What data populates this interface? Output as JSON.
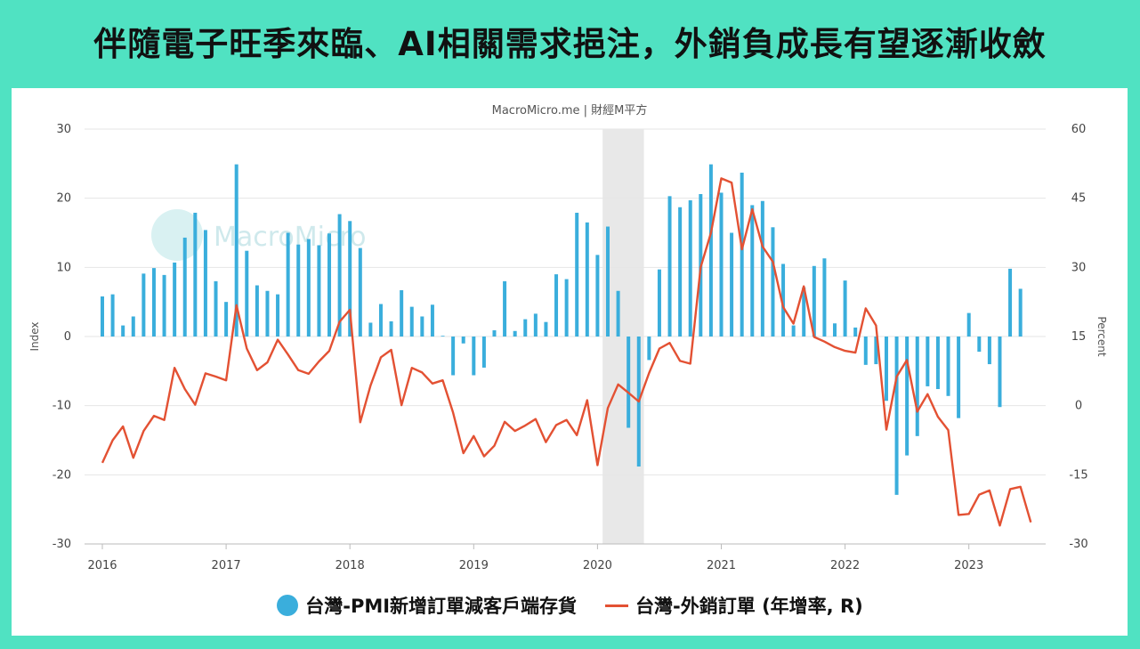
{
  "title": "伴隨電子旺季來臨、AI相關需求挹注，外銷負成長有望逐漸收斂",
  "source": "MacroMicro.me | 財經M平方",
  "watermark": "MacroMicro",
  "colors": {
    "bar": "#3aaedc",
    "line": "#e35133",
    "frame": "#50e2c2",
    "recession": "#e8e8e8"
  },
  "legend": {
    "bar_label": "台灣-PMI新增訂單減客戶端存貨",
    "line_label": "台灣-外銷訂單 (年增率, R)"
  },
  "chart_data": {
    "type": "bar",
    "left_axis_label": "Index",
    "right_axis_label": "Percent",
    "left_ylim": [
      -30,
      30
    ],
    "right_ylim": [
      -30,
      60
    ],
    "left_ticks": [
      30,
      20,
      10,
      0,
      -10,
      -20,
      -30
    ],
    "right_ticks": [
      60,
      45,
      30,
      15,
      0,
      -15,
      -30
    ],
    "x_ticks": [
      "2016",
      "2017",
      "2018",
      "2019",
      "2020",
      "2021",
      "2022",
      "2023"
    ],
    "x_start": "2016-01",
    "shaded_period": [
      "2020-02",
      "2020-05"
    ],
    "grid": "horizontal",
    "legend_position": "bottom",
    "series": [
      {
        "name": "台灣-PMI新增訂單減客戶端存貨",
        "type": "bar",
        "axis": "left",
        "values": [
          5.8,
          6.1,
          1.6,
          2.9,
          9.1,
          9.9,
          8.9,
          10.7,
          14.3,
          17.9,
          15.4,
          8.0,
          5.0,
          24.9,
          12.4,
          7.4,
          6.6,
          6.1,
          15.0,
          13.3,
          14.1,
          13.2,
          14.9,
          17.7,
          16.7,
          12.8,
          2.0,
          4.7,
          2.2,
          6.7,
          4.3,
          2.9,
          4.6,
          0.1,
          -5.6,
          -1.0,
          -5.6,
          -4.5,
          0.9,
          8.0,
          0.8,
          2.5,
          3.3,
          2.1,
          9.0,
          8.3,
          17.9,
          16.5,
          11.8,
          15.9,
          6.6,
          -13.2,
          -18.8,
          -3.4,
          9.7,
          20.3,
          18.7,
          19.7,
          20.6,
          24.9,
          20.8,
          15.0,
          23.7,
          19.0,
          19.6,
          15.8,
          10.5,
          1.6,
          7.1,
          10.2,
          11.3,
          1.9,
          8.1,
          1.3,
          -4.1,
          -4.0,
          -9.3,
          -22.9,
          -17.2,
          -14.4,
          -7.2,
          -7.6,
          -8.6,
          -11.8,
          3.4,
          -2.2,
          -4.0,
          -10.2,
          9.8,
          6.9
        ]
      },
      {
        "name": "台灣-外銷訂單 (年增率, R)",
        "type": "line",
        "axis": "right",
        "values": [
          -12.4,
          -7.5,
          -4.5,
          -11.3,
          -5.5,
          -2.2,
          -3.1,
          8.2,
          3.6,
          0.2,
          7.0,
          6.3,
          5.5,
          21.8,
          12.4,
          7.7,
          9.4,
          14.3,
          11.1,
          7.7,
          6.9,
          9.6,
          11.9,
          18.2,
          20.8,
          -3.6,
          4.4,
          10.5,
          12.1,
          0.1,
          8.2,
          7.2,
          4.8,
          5.5,
          -1.5,
          -10.3,
          -6.6,
          -11.0,
          -8.7,
          -3.5,
          -5.5,
          -4.3,
          -2.9,
          -7.9,
          -4.2,
          -3.1,
          -6.4,
          1.2,
          -12.9,
          -0.5,
          4.6,
          2.8,
          0.9,
          7.1,
          12.4,
          13.6,
          9.7,
          9.1,
          30.0,
          37.5,
          49.3,
          48.4,
          33.9,
          42.6,
          34.5,
          31.2,
          21.4,
          17.8,
          25.9,
          14.9,
          13.9,
          12.7,
          11.9,
          11.5,
          21.1,
          17.4,
          -5.2,
          6.3,
          9.9,
          -1.3,
          2.5,
          -2.4,
          -5.3,
          -23.7,
          -23.5,
          -19.3,
          -18.4,
          -26.0,
          -18.1,
          -17.6,
          -25.3
        ]
      }
    ]
  }
}
